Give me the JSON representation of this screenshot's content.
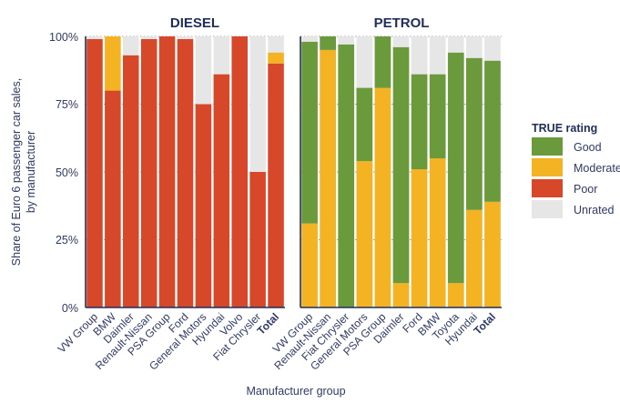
{
  "chart_data": {
    "type": "bar",
    "stacked": true,
    "ylabel": "Share of Euro 6 passenger car sales, by manufacturer",
    "xlabel": "Manufacturer group",
    "ylim": [
      0,
      100
    ],
    "yticks": [
      "0%",
      "25%",
      "50%",
      "75%",
      "100%"
    ],
    "legend": {
      "title": "TRUE rating",
      "placement": "right",
      "items": [
        {
          "name": "Good",
          "color": "#6a9a3c"
        },
        {
          "name": "Moderate",
          "color": "#f3b323"
        },
        {
          "name": "Poor",
          "color": "#d7482a"
        },
        {
          "name": "Unrated",
          "color": "#e6e6e6"
        }
      ]
    },
    "panels": [
      {
        "title": "DIESEL",
        "categories": [
          "VW Group",
          "BMW",
          "Daimler",
          "Renault-Nissan",
          "PSA Group",
          "Ford",
          "General Motors",
          "Hyundai",
          "Volvo",
          "Fiat Chrysler",
          "Total"
        ],
        "bold_category": "Total",
        "series": [
          {
            "name": "Poor",
            "values": [
              99,
              80,
              93,
              99,
              100,
              99,
              75,
              86,
              100,
              50,
              90
            ]
          },
          {
            "name": "Moderate",
            "values": [
              0,
              20,
              0,
              0,
              0,
              0,
              0,
              0,
              0,
              0,
              4
            ]
          },
          {
            "name": "Good",
            "values": [
              0,
              0,
              0,
              0,
              0,
              0,
              0,
              0,
              0,
              0,
              0
            ]
          }
        ]
      },
      {
        "title": "PETROL",
        "categories": [
          "VW Group",
          "Renault-Nissan",
          "Fiat Chrysler",
          "General Motors",
          "PSA Group",
          "Daimler",
          "Ford",
          "BMW",
          "Toyota",
          "Hyundai",
          "Total"
        ],
        "bold_category": "Total",
        "series": [
          {
            "name": "Poor",
            "values": [
              0,
              0,
              0,
              0,
              0,
              0,
              0,
              0,
              0,
              0,
              0
            ]
          },
          {
            "name": "Moderate",
            "values": [
              31,
              95,
              0,
              54,
              81,
              9,
              51,
              55,
              9,
              36,
              39
            ]
          },
          {
            "name": "Good",
            "values": [
              67,
              5,
              97,
              27,
              19,
              87,
              35,
              31,
              85,
              56,
              52
            ]
          }
        ]
      }
    ]
  }
}
